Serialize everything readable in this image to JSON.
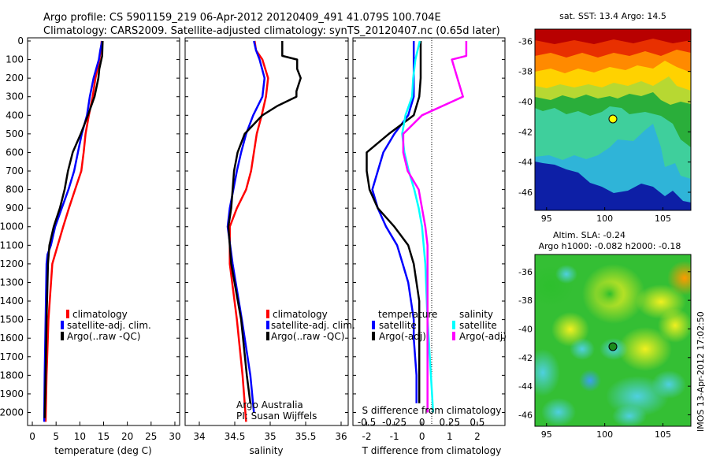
{
  "header": {
    "line1": "Argo profile: CS 5901159_219 06-Apr-2012 20120409_491 41.079S 100.704E",
    "line2": "Climatology: CARS2009. Satellite-adjusted climatology: synTS_20120407.nc (0.65d later)"
  },
  "depth_ticks": [
    "0",
    "100",
    "200",
    "300",
    "400",
    "500",
    "600",
    "700",
    "800",
    "900",
    "1000",
    "1100",
    "1200",
    "1300",
    "1400",
    "1500",
    "1600",
    "1700",
    "1800",
    "1900",
    "2000"
  ],
  "chart_data": [
    {
      "id": "temperature",
      "type": "line",
      "xlabel": "temperature (deg C)",
      "xlim": [
        -1,
        31
      ],
      "ylim": [
        0,
        2070
      ],
      "xticks": [
        "0",
        "5",
        "10",
        "15",
        "20",
        "25",
        "30"
      ],
      "legend": [
        "climatology",
        "satellite-adj. clim.",
        "Argo(..raw -QC)"
      ],
      "series": [
        {
          "name": "climatology",
          "color": "#ff0000",
          "depth": [
            0,
            50,
            100,
            200,
            300,
            400,
            500,
            600,
            700,
            800,
            900,
            1000,
            1200,
            1500,
            1800,
            2050
          ],
          "values": [
            14.6,
            14.4,
            14.1,
            13.3,
            12.7,
            11.9,
            11.2,
            10.8,
            10.3,
            9.0,
            7.7,
            6.5,
            4.2,
            3.4,
            3.0,
            2.8
          ]
        },
        {
          "name": "satellite-adj. clim.",
          "color": "#0000ff",
          "depth": [
            0,
            50,
            100,
            200,
            300,
            400,
            500,
            600,
            700,
            800,
            900,
            1000,
            1100,
            1150,
            1200,
            1500,
            1800,
            2050
          ],
          "values": [
            14.7,
            14.3,
            14.0,
            12.9,
            12.1,
            11.5,
            10.4,
            9.6,
            8.8,
            7.6,
            6.2,
            4.8,
            3.9,
            3.2,
            3.0,
            2.8,
            2.6,
            2.5
          ]
        },
        {
          "name": "Argo(..raw -QC)",
          "color": "#000000",
          "depth": [
            0,
            80,
            150,
            200,
            300,
            400,
            500,
            600,
            700,
            800,
            900,
            1000,
            1100,
            1200,
            1500,
            1800,
            2030
          ],
          "values": [
            14.8,
            14.7,
            14.1,
            13.9,
            13.1,
            11.7,
            10.2,
            8.5,
            7.5,
            6.8,
            5.8,
            4.5,
            3.6,
            3.3,
            3.0,
            2.8,
            2.6
          ]
        }
      ]
    },
    {
      "id": "salinity",
      "type": "line",
      "xlabel": "salinity",
      "xlim": [
        33.8,
        36.1
      ],
      "ylim": [
        0,
        2070
      ],
      "xticks": [
        "34",
        "34.5",
        "35",
        "35.5",
        "36"
      ],
      "legend": [
        "climatology",
        "satellite-adj. clim.",
        "Argo(..raw -QC)"
      ],
      "annotations": [
        "Argo Australia",
        "PI: Susan Wijffels"
      ],
      "series": [
        {
          "name": "climatology",
          "color": "#ff0000",
          "depth": [
            0,
            50,
            100,
            200,
            300,
            400,
            500,
            600,
            700,
            800,
            900,
            1000,
            1200,
            1500,
            1800,
            2050
          ],
          "values": [
            34.78,
            34.8,
            34.89,
            34.97,
            34.94,
            34.88,
            34.81,
            34.77,
            34.73,
            34.66,
            34.53,
            34.43,
            34.43,
            34.53,
            34.61,
            34.66
          ]
        },
        {
          "name": "satellite-adj. clim.",
          "color": "#0000ff",
          "depth": [
            0,
            50,
            100,
            200,
            300,
            400,
            500,
            600,
            700,
            800,
            900,
            1000,
            1200,
            1500,
            1800,
            2000
          ],
          "values": [
            34.77,
            34.8,
            34.85,
            34.92,
            34.89,
            34.76,
            34.66,
            34.59,
            34.53,
            34.48,
            34.43,
            34.4,
            34.47,
            34.6,
            34.72,
            34.77
          ]
        },
        {
          "name": "Argo(..raw -QC)",
          "color": "#000000",
          "depth": [
            0,
            80,
            100,
            150,
            200,
            270,
            300,
            350,
            400,
            500,
            600,
            700,
            800,
            900,
            1000,
            1200,
            1500,
            1800,
            1950
          ],
          "values": [
            35.17,
            35.17,
            35.38,
            35.38,
            35.43,
            35.37,
            35.37,
            35.1,
            34.89,
            34.64,
            34.54,
            34.49,
            34.47,
            34.45,
            34.41,
            34.45,
            34.59,
            34.67,
            34.72
          ]
        }
      ]
    },
    {
      "id": "difference",
      "type": "line",
      "xlabel": "T difference from climatology",
      "xlabel_top": "S difference from climatology",
      "xlim": [
        -2.5,
        3.0
      ],
      "ylim": [
        0,
        2070
      ],
      "xticks": [
        "-2",
        "-1",
        "0",
        "1",
        "2"
      ],
      "xticks_salinity": [
        "-0.5",
        "-0.25",
        "0",
        "0.25",
        "0.5"
      ],
      "legend_groups": [
        {
          "title": "temperature",
          "items": [
            "satellite",
            "Argo(-adj)"
          ]
        },
        {
          "title": "salinity",
          "items": [
            "satellite",
            "Argo(-adj)"
          ]
        }
      ],
      "series": [
        {
          "name": "temperature satellite",
          "color": "#0000ff",
          "depth": [
            0,
            100,
            200,
            300,
            400,
            500,
            600,
            700,
            800,
            900,
            1000,
            1100,
            1200,
            1300,
            1400,
            1500,
            1600,
            1800,
            1950
          ],
          "values": [
            -0.3,
            -0.3,
            -0.3,
            -0.3,
            -0.5,
            -1.0,
            -1.4,
            -1.6,
            -1.8,
            -1.6,
            -1.3,
            -0.9,
            -0.7,
            -0.5,
            -0.4,
            -0.3,
            -0.3,
            -0.2,
            -0.2
          ]
        },
        {
          "name": "temperature Argo(-adj)",
          "color": "#000000",
          "depth": [
            0,
            200,
            300,
            400,
            500,
            600,
            700,
            800,
            900,
            1000,
            1100,
            1200,
            1300,
            1400,
            1500,
            1700,
            1800,
            1950
          ],
          "values": [
            -0.05,
            -0.05,
            -0.1,
            -0.3,
            -1.2,
            -2.0,
            -2.0,
            -1.9,
            -1.6,
            -1.0,
            -0.5,
            -0.3,
            -0.2,
            -0.1,
            -0.1,
            -0.1,
            -0.1,
            -0.1
          ]
        },
        {
          "name": "salinity satellite",
          "color": "#00ffff",
          "depth": [
            0,
            100,
            200,
            300,
            400,
            500,
            600,
            700,
            800,
            900,
            1000,
            1200,
            1500,
            1800,
            2000
          ],
          "values": [
            -0.02,
            -0.06,
            -0.08,
            -0.09,
            -0.15,
            -0.18,
            -0.16,
            -0.12,
            -0.07,
            -0.03,
            0.0,
            0.03,
            0.05,
            0.08,
            0.1
          ]
        },
        {
          "name": "salinity Argo(-adj)",
          "color": "#ff00ff",
          "depth": [
            0,
            80,
            100,
            200,
            300,
            400,
            500,
            600,
            700,
            800,
            900,
            1000,
            1100,
            1200,
            1500,
            1800,
            2000
          ],
          "values": [
            0.4,
            0.4,
            0.27,
            0.32,
            0.37,
            0.0,
            -0.17,
            -0.17,
            -0.13,
            -0.03,
            0.0,
            0.03,
            0.05,
            0.05,
            0.05,
            0.05,
            0.05
          ]
        }
      ]
    }
  ],
  "maps": [
    {
      "id": "sst-map",
      "title": "sat. SST: 13.4  Argo: 14.5",
      "yticks": [
        "-36",
        "-38",
        "-40",
        "-42",
        "-44",
        "-46"
      ],
      "xticks": [
        "95",
        "100",
        "105"
      ],
      "point_color": "#ffff00"
    },
    {
      "id": "sla-map",
      "title_line1": "Altim. SLA: -0.24",
      "title_line2": "Argo h1000: -0.082 h2000: -0.18",
      "yticks": [
        "-36",
        "-38",
        "-40",
        "-42",
        "-44",
        "-46"
      ],
      "xticks": [
        "95",
        "100",
        "105"
      ],
      "point_color": "#1c8a1c"
    }
  ],
  "watermark": "IMOS 13-Apr-2012 17:02:50"
}
